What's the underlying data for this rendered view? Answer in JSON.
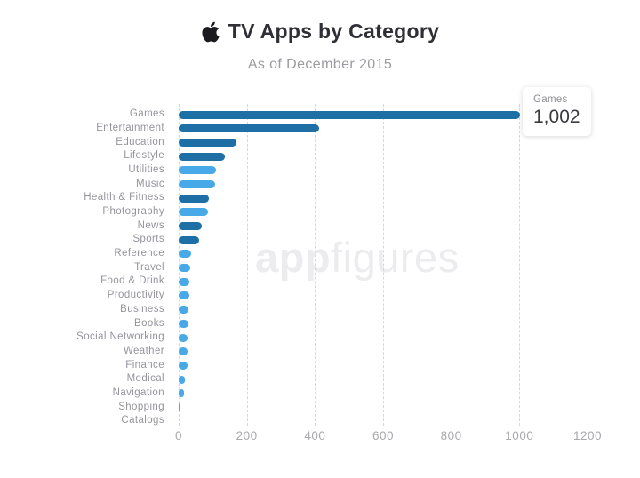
{
  "header": {
    "title": "TV Apps by Category",
    "subtitle": "As of December 2015",
    "apple_icon": "apple-logo"
  },
  "watermark": {
    "bold": "app",
    "light": "figures"
  },
  "tooltip": {
    "label": "Games",
    "value": "1,002"
  },
  "chart_data": {
    "type": "bar",
    "orientation": "horizontal",
    "title": "TV Apps by Category",
    "subtitle": "As of December 2015",
    "xlabel": "",
    "ylabel": "",
    "xlim": [
      0,
      1200
    ],
    "x_ticks": [
      0,
      200,
      400,
      600,
      800,
      1000,
      1200
    ],
    "grid": "dashed-vertical",
    "legend": "none",
    "categories": [
      "Games",
      "Entertainment",
      "Education",
      "Lifestyle",
      "Utilities",
      "Music",
      "Health & Fitness",
      "Photography",
      "News",
      "Sports",
      "Reference",
      "Travel",
      "Food & Drink",
      "Productivity",
      "Business",
      "Books",
      "Social Networking",
      "Weather",
      "Finance",
      "Medical",
      "Navigation",
      "Shopping",
      "Catalogs"
    ],
    "values": [
      1002,
      413,
      170,
      135,
      110,
      108,
      89,
      85,
      69,
      61,
      37,
      35,
      31,
      30,
      29,
      28,
      27,
      26,
      25,
      18,
      16,
      6,
      0
    ],
    "bar_colors": [
      "dark",
      "dark",
      "dark",
      "dark",
      "light",
      "light",
      "dark",
      "light",
      "dark",
      "dark",
      "light",
      "light",
      "light",
      "light",
      "light",
      "light",
      "light",
      "light",
      "light",
      "light",
      "light",
      "light",
      "light"
    ],
    "colors": {
      "dark": "#1d6fa5",
      "light": "#47a9e8"
    },
    "highlighted_category": "Games",
    "highlighted_value": "1,002"
  }
}
